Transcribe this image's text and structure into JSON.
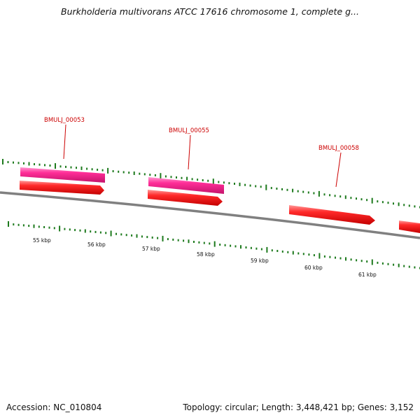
{
  "title": "Burkholderia multivorans ATCC 17616 chromosome 1, complete g...",
  "footer": {
    "accession": "Accession: NC_010804",
    "summary": "Topology: circular; Length: 3,448,421 bp; Genes: 3,152"
  },
  "colors": {
    "backbone": "#808080",
    "forward_gene": "#ff0000",
    "cds_feature": "#ff1f8f",
    "tick_marks": "#1d7a1d",
    "gene_label": "#cc0000"
  },
  "scale_labels": [
    "55 kbp",
    "56 kbp",
    "57 kbp",
    "58 kbp",
    "59 kbp",
    "60 kbp",
    "61 kbp"
  ],
  "gene_labels": [
    "BMULJ_00053",
    "BMULJ_00055",
    "BMULJ_00058"
  ]
}
